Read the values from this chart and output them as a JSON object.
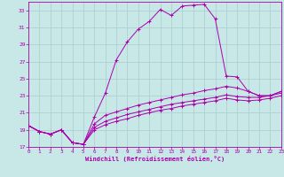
{
  "background_color": "#c8e8e8",
  "grid_color": "#aacccc",
  "line_color": "#aa00aa",
  "xlim": [
    0,
    23
  ],
  "ylim": [
    17,
    34
  ],
  "yticks": [
    17,
    19,
    21,
    23,
    25,
    27,
    29,
    31,
    33
  ],
  "xticks": [
    0,
    1,
    2,
    3,
    4,
    5,
    6,
    7,
    8,
    9,
    10,
    11,
    12,
    13,
    14,
    15,
    16,
    17,
    18,
    19,
    20,
    21,
    22,
    23
  ],
  "xlabel": "Windchill (Refroidissement éolien,°C)",
  "series": [
    {
      "x": [
        0,
        1,
        2,
        3,
        4,
        5,
        6,
        7,
        8,
        9,
        10,
        11,
        12,
        13,
        14,
        15,
        16,
        17,
        18,
        19,
        20,
        21,
        22,
        23
      ],
      "y": [
        19.5,
        18.8,
        18.5,
        19.0,
        17.5,
        17.3,
        20.5,
        23.3,
        27.2,
        29.3,
        30.8,
        31.7,
        33.1,
        32.4,
        33.5,
        33.6,
        33.7,
        32.0,
        25.3,
        25.2,
        23.5,
        23.0,
        23.0,
        23.5
      ]
    },
    {
      "x": [
        0,
        1,
        2,
        3,
        4,
        5,
        6,
        7,
        8,
        9,
        10,
        11,
        12,
        13,
        14,
        15,
        16,
        17,
        18,
        19,
        20,
        21,
        22,
        23
      ],
      "y": [
        19.5,
        18.8,
        18.5,
        19.0,
        17.5,
        17.3,
        19.7,
        20.7,
        21.1,
        21.5,
        21.9,
        22.2,
        22.5,
        22.8,
        23.1,
        23.3,
        23.6,
        23.8,
        24.1,
        23.9,
        23.5,
        23.0,
        23.0,
        23.5
      ]
    },
    {
      "x": [
        0,
        1,
        2,
        3,
        4,
        5,
        6,
        7,
        8,
        9,
        10,
        11,
        12,
        13,
        14,
        15,
        16,
        17,
        18,
        19,
        20,
        21,
        22,
        23
      ],
      "y": [
        19.5,
        18.8,
        18.5,
        19.0,
        17.5,
        17.3,
        19.3,
        20.0,
        20.4,
        20.8,
        21.1,
        21.4,
        21.7,
        22.0,
        22.2,
        22.4,
        22.6,
        22.8,
        23.1,
        22.9,
        22.8,
        22.8,
        23.0,
        23.3
      ]
    },
    {
      "x": [
        0,
        1,
        2,
        3,
        4,
        5,
        6,
        7,
        8,
        9,
        10,
        11,
        12,
        13,
        14,
        15,
        16,
        17,
        18,
        19,
        20,
        21,
        22,
        23
      ],
      "y": [
        19.5,
        18.8,
        18.5,
        19.0,
        17.5,
        17.3,
        19.0,
        19.6,
        20.0,
        20.3,
        20.7,
        21.0,
        21.3,
        21.5,
        21.8,
        22.0,
        22.2,
        22.4,
        22.7,
        22.5,
        22.4,
        22.5,
        22.7,
        23.0
      ]
    }
  ]
}
